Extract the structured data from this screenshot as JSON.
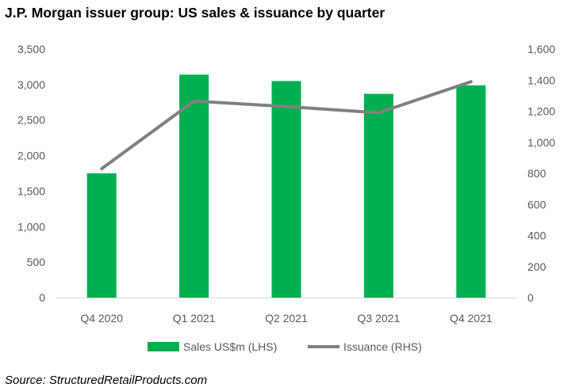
{
  "chart_data": {
    "type": "bar",
    "title": "J.P. Morgan issuer group: US sales & issuance by quarter",
    "categories": [
      "Q4 2020",
      "Q1 2021",
      "Q2 2021",
      "Q3 2021",
      "Q4 2021"
    ],
    "series": [
      {
        "name": "Sales US$m (LHS)",
        "type": "bar",
        "axis": "left",
        "color": "#00b050",
        "values": [
          1750,
          3140,
          3050,
          2870,
          2990
        ]
      },
      {
        "name": "Issuance (RHS)",
        "type": "line",
        "axis": "right",
        "color": "#808080",
        "values": [
          830,
          1265,
          1230,
          1190,
          1390
        ]
      }
    ],
    "y_left": {
      "min": 0,
      "max": 3500,
      "ticks": [
        "0",
        "500",
        "1,000",
        "1,500",
        "2,000",
        "2,500",
        "3,000",
        "3,500"
      ]
    },
    "y_right": {
      "min": 0,
      "max": 1600,
      "ticks": [
        "0",
        "200",
        "400",
        "600",
        "800",
        "1,000",
        "1,200",
        "1,400",
        "1,600"
      ]
    },
    "grid": false,
    "legend_position": "bottom",
    "source": "Source: StructuredRetailProducts.com"
  }
}
